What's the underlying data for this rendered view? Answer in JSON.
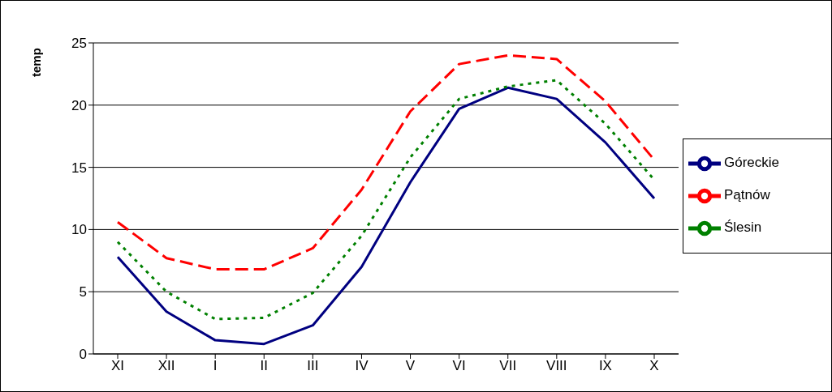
{
  "chart_data": {
    "type": "line",
    "ylabel": "temp",
    "categories": [
      "XI",
      "XII",
      "I",
      "II",
      "III",
      "IV",
      "V",
      "VI",
      "VII",
      "VIII",
      "IX",
      "X"
    ],
    "series": [
      {
        "name": "Góreckie",
        "color": "#000080",
        "line_style": "solid",
        "values": [
          7.8,
          3.4,
          1.1,
          0.8,
          2.3,
          7.0,
          13.8,
          19.7,
          21.4,
          20.5,
          17.0,
          12.5
        ]
      },
      {
        "name": "Pątnów",
        "color": "#ff0000",
        "line_style": "dashed",
        "values": [
          10.6,
          7.7,
          6.8,
          6.8,
          8.5,
          13.2,
          19.5,
          23.3,
          24.0,
          23.7,
          20.3,
          15.6
        ]
      },
      {
        "name": "Ślesin",
        "color": "#008000",
        "line_style": "dotted",
        "values": [
          9.0,
          5.0,
          2.8,
          2.9,
          4.9,
          9.5,
          15.8,
          20.5,
          21.5,
          22.0,
          18.5,
          14.0
        ]
      }
    ],
    "ylim": [
      0,
      25
    ],
    "yticks": [
      0,
      5,
      10,
      15,
      20,
      25
    ],
    "grid": "y",
    "legend": "right",
    "marker": "none"
  }
}
